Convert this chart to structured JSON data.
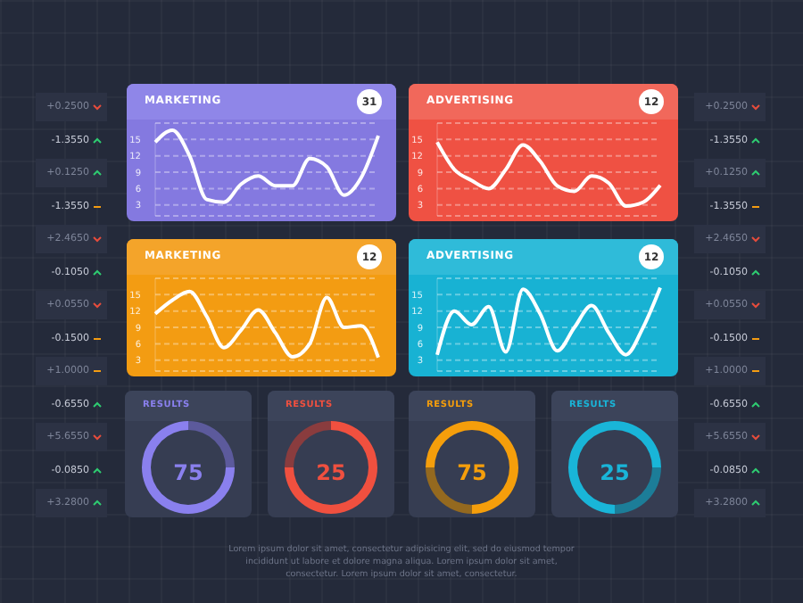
{
  "chart_data": [
    {
      "type": "other",
      "annotations": [
        "+0.2500",
        "-1.3550",
        "+0.1250",
        "-1.3550",
        "+2.4650",
        "-0.1050",
        "+0.0550",
        "-0.1500",
        "+1.0000",
        "-0.6550",
        "+5.6550",
        "-0.0850",
        "+3.2800"
      ]
    },
    {
      "type": "line",
      "title": "MARKETING",
      "annotations": [
        "31"
      ],
      "categories": [
        null,
        null,
        null,
        null,
        null,
        null,
        null,
        null,
        null,
        null,
        null,
        null,
        null,
        null
      ],
      "series": [
        {
          "color": "#ffffff",
          "values": [
            14.5,
            16.7,
            12,
            4,
            3.5,
            6.8,
            8.3,
            6.5,
            6.5,
            11.5,
            10,
            4.8,
            8,
            15.7
          ]
        }
      ],
      "ylim": [
        1,
        18
      ],
      "yticks": [
        3,
        6,
        9,
        12,
        15
      ],
      "grid": "y",
      "tick_labels": "y",
      "marker": "none"
    },
    {
      "type": "line",
      "title": "ADVERTISING",
      "annotations": [
        "12"
      ],
      "categories": [
        null,
        null,
        null,
        null,
        null,
        null,
        null,
        null,
        null,
        null,
        null,
        null,
        null,
        null
      ],
      "series": [
        {
          "color": "#ffffff",
          "values": [
            14.5,
            9.5,
            7.5,
            6,
            9.5,
            14,
            11,
            6.5,
            5.5,
            8.3,
            7,
            2.8,
            3.5,
            6.6
          ]
        }
      ],
      "ylim": [
        1,
        18
      ],
      "yticks": [
        3,
        6,
        9,
        12,
        15
      ],
      "grid": "y",
      "tick_labels": "y",
      "marker": "none"
    },
    {
      "type": "other",
      "annotations": [
        "+0.2500",
        "-1.3550",
        "+0.1250",
        "-1.3550",
        "+2.4650",
        "-0.1050",
        "+0.0550",
        "-0.1500",
        "+1.0000",
        "-0.6550",
        "+5.6550",
        "-0.0850",
        "+3.2800"
      ]
    },
    {
      "type": "line",
      "title": "MARKETING",
      "annotations": [
        "12"
      ],
      "categories": [
        null,
        null,
        null,
        null,
        null,
        null,
        null,
        null,
        null,
        null,
        null,
        null,
        null,
        null
      ],
      "series": [
        {
          "color": "#ffffff",
          "values": [
            11.5,
            14,
            15.6,
            11,
            5.3,
            8.5,
            12.2,
            8,
            3.6,
            6,
            14.5,
            9,
            9.3,
            3.5
          ]
        }
      ],
      "ylim": [
        1,
        18
      ],
      "yticks": [
        3,
        6,
        9,
        12,
        15
      ],
      "grid": "y",
      "tick_labels": "y",
      "marker": "none"
    },
    {
      "type": "line",
      "title": "ADVERTISING",
      "annotations": [
        "12"
      ],
      "categories": [
        null,
        null,
        null,
        null,
        null,
        null,
        null,
        null,
        null,
        null,
        null,
        null,
        null,
        null
      ],
      "series": [
        {
          "color": "#ffffff",
          "values": [
            4,
            12,
            9.5,
            12.8,
            4.5,
            16,
            11.5,
            4.7,
            9,
            13,
            8,
            4,
            9,
            16.3
          ]
        }
      ],
      "ylim": [
        1,
        18
      ],
      "yticks": [
        3,
        6,
        9,
        12,
        15
      ],
      "grid": "y",
      "tick_labels": "y",
      "marker": "none"
    },
    {
      "type": "donut",
      "title": "RESULTS",
      "annotations": [
        "75"
      ],
      "categories": [
        null,
        null
      ],
      "values": [
        75,
        25
      ],
      "colors": [
        "#8a80ee",
        "#5c5a9c"
      ]
    },
    {
      "type": "donut",
      "title": "RESULTS",
      "annotations": [
        "25"
      ],
      "categories": [
        null,
        null
      ],
      "values": [
        75,
        25
      ],
      "colors": [
        "#f0503f",
        "#8a3c3e"
      ]
    },
    {
      "type": "donut",
      "title": "RESULTS",
      "annotations": [
        "75"
      ],
      "categories": [
        null,
        null
      ],
      "values": [
        75,
        25
      ],
      "colors": [
        "#f59e0b",
        "#94691f"
      ]
    },
    {
      "type": "donut",
      "title": "RESULTS",
      "annotations": [
        "25"
      ],
      "categories": [
        null,
        null
      ],
      "values": [
        75,
        25
      ],
      "colors": [
        "#19b5d8",
        "#1c7d98"
      ]
    },
    {
      "type": "other",
      "annotations": [
        "Lorem ipsum dolor sit amet, consectetur adipisicing elit, sed do eiusmod tempor",
        "incididunt ut labore et dolore magna aliqua. Lorem ipsum dolor sit amet,",
        "consectetur. Lorem ipsum dolor sit amet, consectetur."
      ]
    }
  ]
}
